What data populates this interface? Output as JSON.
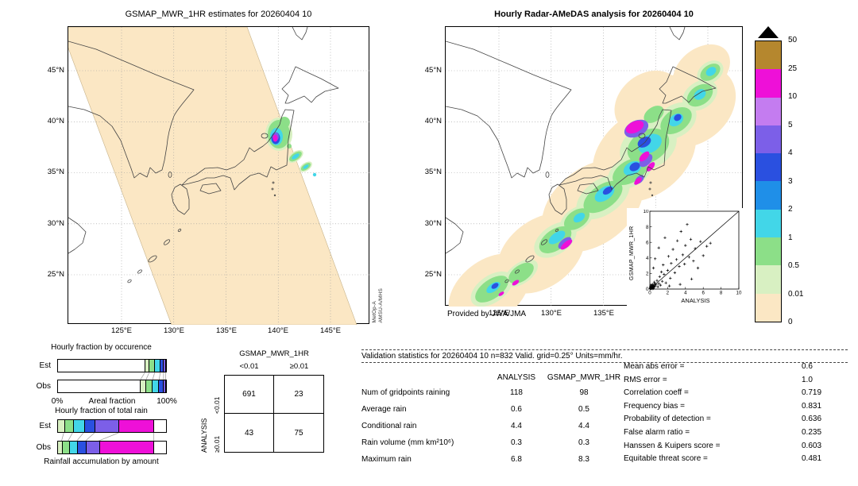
{
  "map_left": {
    "title": "GSMAP_MWR_1HR estimates for 20260404 10",
    "lat_labels": [
      "45°N",
      "40°N",
      "35°N",
      "30°N",
      "25°N"
    ],
    "lon_labels": [
      "125°E",
      "130°E",
      "135°E",
      "140°E",
      "145°E"
    ],
    "watermark": [
      "MetOp-A",
      "AMSU-A/MHS"
    ]
  },
  "map_right": {
    "title": "Hourly Radar-AMeDAS analysis for 20260404 10",
    "lat_labels": [
      "45°N",
      "40°N",
      "35°N",
      "30°N",
      "25°N"
    ],
    "lon_labels": [
      "125°E",
      "130°E",
      "135°E",
      "140°E",
      "145°E"
    ],
    "credit": "Provided by JWA/JMA"
  },
  "legend": {
    "units": "mm/hr",
    "boundary_labels": [
      "50",
      "25",
      "10",
      "5",
      "4",
      "3",
      "2",
      "1",
      "0.5",
      "0.01",
      "0"
    ],
    "segment_colors_top_to_bottom": [
      "#b5872e",
      "#ee10d8",
      "#c47cf0",
      "#7c5fe8",
      "#2a50e0",
      "#1f8fe8",
      "#42d6e8",
      "#8cdf88",
      "#d8f0c2",
      "#fbe7c4"
    ],
    "overflow_marker": "black-triangle-up"
  },
  "chart_data": [
    {
      "id": "hourly_fraction_by_occurrence",
      "type": "bar",
      "title": "Hourly fraction by occurence",
      "stacked": true,
      "orientation": "horizontal",
      "categories": [
        "Est",
        "Obs"
      ],
      "palette": [
        "#ffffff",
        "#d8f0c2",
        "#8cdf88",
        "#42d6e8",
        "#2a50e0",
        "#7c5fe8",
        "#ee10d8"
      ],
      "series": [
        {
          "name": "Est",
          "values": [
            80,
            4,
            5,
            5,
            3,
            2,
            1
          ]
        },
        {
          "name": "Obs",
          "values": [
            76,
            5,
            6,
            6,
            4,
            2,
            1
          ]
        }
      ],
      "xlabel": "Areal fraction",
      "x_min_label": "0%",
      "x_max_label": "100%",
      "xlim": [
        0,
        100
      ]
    },
    {
      "id": "hourly_fraction_of_total_rain",
      "type": "bar",
      "title": "Hourly fraction of total rain",
      "caption": "Rainfall accumulation by amount",
      "stacked": true,
      "orientation": "horizontal",
      "categories": [
        "Est",
        "Obs"
      ],
      "palette": [
        "#d8f0c2",
        "#8cdf88",
        "#42d6e8",
        "#2a50e0",
        "#7c5fe8",
        "#ee10d8",
        "#ffffff"
      ],
      "series": [
        {
          "name": "Est",
          "values": [
            6,
            8,
            10,
            10,
            22,
            32,
            12
          ]
        },
        {
          "name": "Obs",
          "values": [
            4,
            6,
            8,
            8,
            12,
            50,
            12
          ]
        }
      ],
      "xlim": [
        0,
        100
      ]
    },
    {
      "id": "contingency_table",
      "type": "table",
      "col_group_label": "GSMAP_MWR_1HR",
      "row_group_label": "ANALYSIS",
      "col_labels": [
        "<0.01",
        "≥0.01"
      ],
      "row_labels": [
        "<0.01",
        "≥0.01"
      ],
      "values": [
        [
          691,
          23
        ],
        [
          43,
          75
        ]
      ]
    },
    {
      "id": "validation_statistics",
      "type": "table",
      "title": "Validation statistics for 20260404 10 n=832 Valid. grid=0.25° Units=mm/hr.",
      "col_headers": [
        "ANALYSIS",
        "GSMAP_MWR_1HR"
      ],
      "rows": [
        {
          "label": "Num of gridpoints raining",
          "values": [
            "118",
            "98"
          ]
        },
        {
          "label": "Average rain",
          "values": [
            "0.6",
            "0.5"
          ]
        },
        {
          "label": "Conditional rain",
          "values": [
            "4.4",
            "4.4"
          ]
        },
        {
          "label": "Rain volume (mm km²10⁶)",
          "values": [
            "0.3",
            "0.3"
          ]
        },
        {
          "label": "Maximum rain",
          "values": [
            "6.8",
            "8.3"
          ]
        }
      ],
      "scores": [
        {
          "label": "Mean abs error =",
          "value": "0.6"
        },
        {
          "label": "RMS error =",
          "value": "1.0"
        },
        {
          "label": "Correlation coeff =",
          "value": "0.719"
        },
        {
          "label": "Frequency bias =",
          "value": "0.831"
        },
        {
          "label": "Probability of detection =",
          "value": "0.636"
        },
        {
          "label": "False alarm ratio =",
          "value": "0.235"
        },
        {
          "label": "Hanssen & Kuipers score =",
          "value": "0.603"
        },
        {
          "label": "Equitable threat score =",
          "value": "0.481"
        }
      ]
    },
    {
      "id": "inset_scatter",
      "type": "scatter",
      "xlabel": "ANALYSIS",
      "ylabel": "GSMAP_MWR_1HR",
      "xlim": [
        0,
        10
      ],
      "ylim": [
        0,
        10
      ],
      "ticks": [
        0,
        2,
        4,
        6,
        8,
        10
      ],
      "identity_line": true,
      "marker": "+",
      "points": [
        [
          0.02,
          0.02
        ],
        [
          0.05,
          0.05
        ],
        [
          0.05,
          0.15
        ],
        [
          0.1,
          0.2
        ],
        [
          0.12,
          0.08
        ],
        [
          0.15,
          0.1
        ],
        [
          0.08,
          0.3
        ],
        [
          0.2,
          0.05
        ],
        [
          0.2,
          0.3
        ],
        [
          0.25,
          0.2
        ],
        [
          0.18,
          0.18
        ],
        [
          0.3,
          0.15
        ],
        [
          0.3,
          0.4
        ],
        [
          0.1,
          0.4
        ],
        [
          0.35,
          0.3
        ],
        [
          0.35,
          0.05
        ],
        [
          0.4,
          0.1
        ],
        [
          0.4,
          0.35
        ],
        [
          0.45,
          0.5
        ],
        [
          0.5,
          0.25
        ],
        [
          0.55,
          0.7
        ],
        [
          0.6,
          0.4
        ],
        [
          0.3,
          0.6
        ],
        [
          0.15,
          0.55
        ],
        [
          0.25,
          0.45
        ],
        [
          0.5,
          0.9
        ],
        [
          0.7,
          0.6
        ],
        [
          0.8,
          1.1
        ],
        [
          0.9,
          0.3
        ],
        [
          1.0,
          0.7
        ],
        [
          1.1,
          1.6
        ],
        [
          1.2,
          0.5
        ],
        [
          1.3,
          2.2
        ],
        [
          1.4,
          1.0
        ],
        [
          1.5,
          3.1
        ],
        [
          1.6,
          1.9
        ],
        [
          1.8,
          0.8
        ],
        [
          2.0,
          2.4
        ],
        [
          2.1,
          4.2
        ],
        [
          2.3,
          1.4
        ],
        [
          2.4,
          3.3
        ],
        [
          2.6,
          5.1
        ],
        [
          2.8,
          2.1
        ],
        [
          3.0,
          3.8
        ],
        [
          3.1,
          6.2
        ],
        [
          3.3,
          2.9
        ],
        [
          3.5,
          7.4
        ],
        [
          3.7,
          4.4
        ],
        [
          3.9,
          3.2
        ],
        [
          4.0,
          5.6
        ],
        [
          4.2,
          8.3
        ],
        [
          4.4,
          4.1
        ],
        [
          4.6,
          6.4
        ],
        [
          4.9,
          3.6
        ],
        [
          5.1,
          5.2
        ],
        [
          5.4,
          2.7
        ],
        [
          5.7,
          6.1
        ],
        [
          6.0,
          4.3
        ],
        [
          6.4,
          5.5
        ],
        [
          6.8,
          5.9
        ],
        [
          0.6,
          3.9
        ],
        [
          1.0,
          5.3
        ],
        [
          1.7,
          6.6
        ],
        [
          0.4,
          2.7
        ],
        [
          2.2,
          0.4
        ],
        [
          3.4,
          0.6
        ],
        [
          4.7,
          1.3
        ]
      ]
    }
  ]
}
